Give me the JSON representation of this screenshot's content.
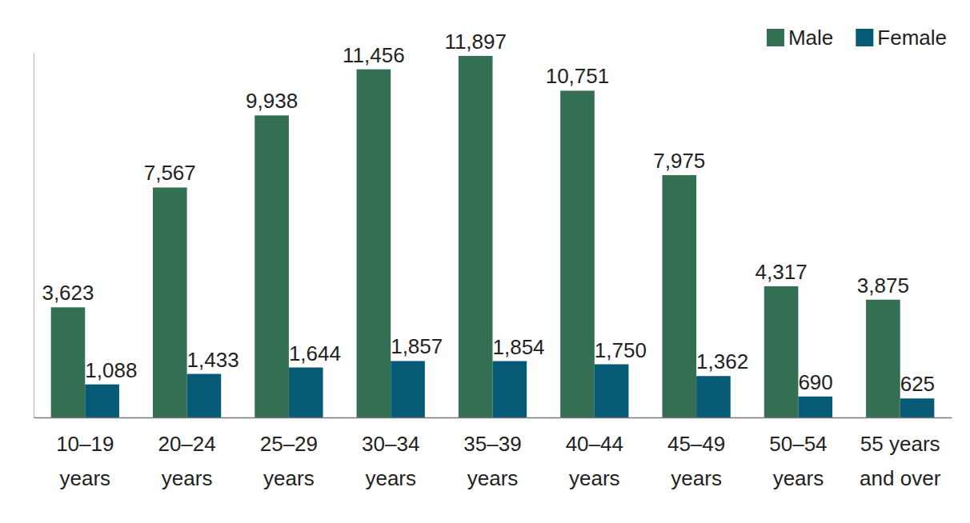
{
  "chart_data": {
    "type": "bar",
    "categories": [
      "10–19 years",
      "20–24 years",
      "25–29 years",
      "30–34 years",
      "35–39 years",
      "40–44 years",
      "45–49 years",
      "50–54 years",
      "55 years and over"
    ],
    "series": [
      {
        "name": "Male",
        "color": "#346f53",
        "values": [
          3623,
          7567,
          9938,
          11456,
          11897,
          10751,
          7975,
          4317,
          3875
        ],
        "value_labels": [
          "3,623",
          "7,567",
          "9,938",
          "11,456",
          "11,897",
          "10,751",
          "7,975",
          "4,317",
          "3,875"
        ]
      },
      {
        "name": "Female",
        "color": "#065a76",
        "values": [
          1088,
          1433,
          1644,
          1857,
          1854,
          1750,
          1362,
          690,
          625
        ],
        "value_labels": [
          "1,088",
          "1,433",
          "1,644",
          "1,857",
          "1,854",
          "1,750",
          "1,362",
          "690",
          "625"
        ]
      }
    ],
    "ylim": [
      0,
      12000
    ],
    "data_labels": true,
    "tick_labels": "x",
    "legend": "top-right",
    "grid": false
  }
}
